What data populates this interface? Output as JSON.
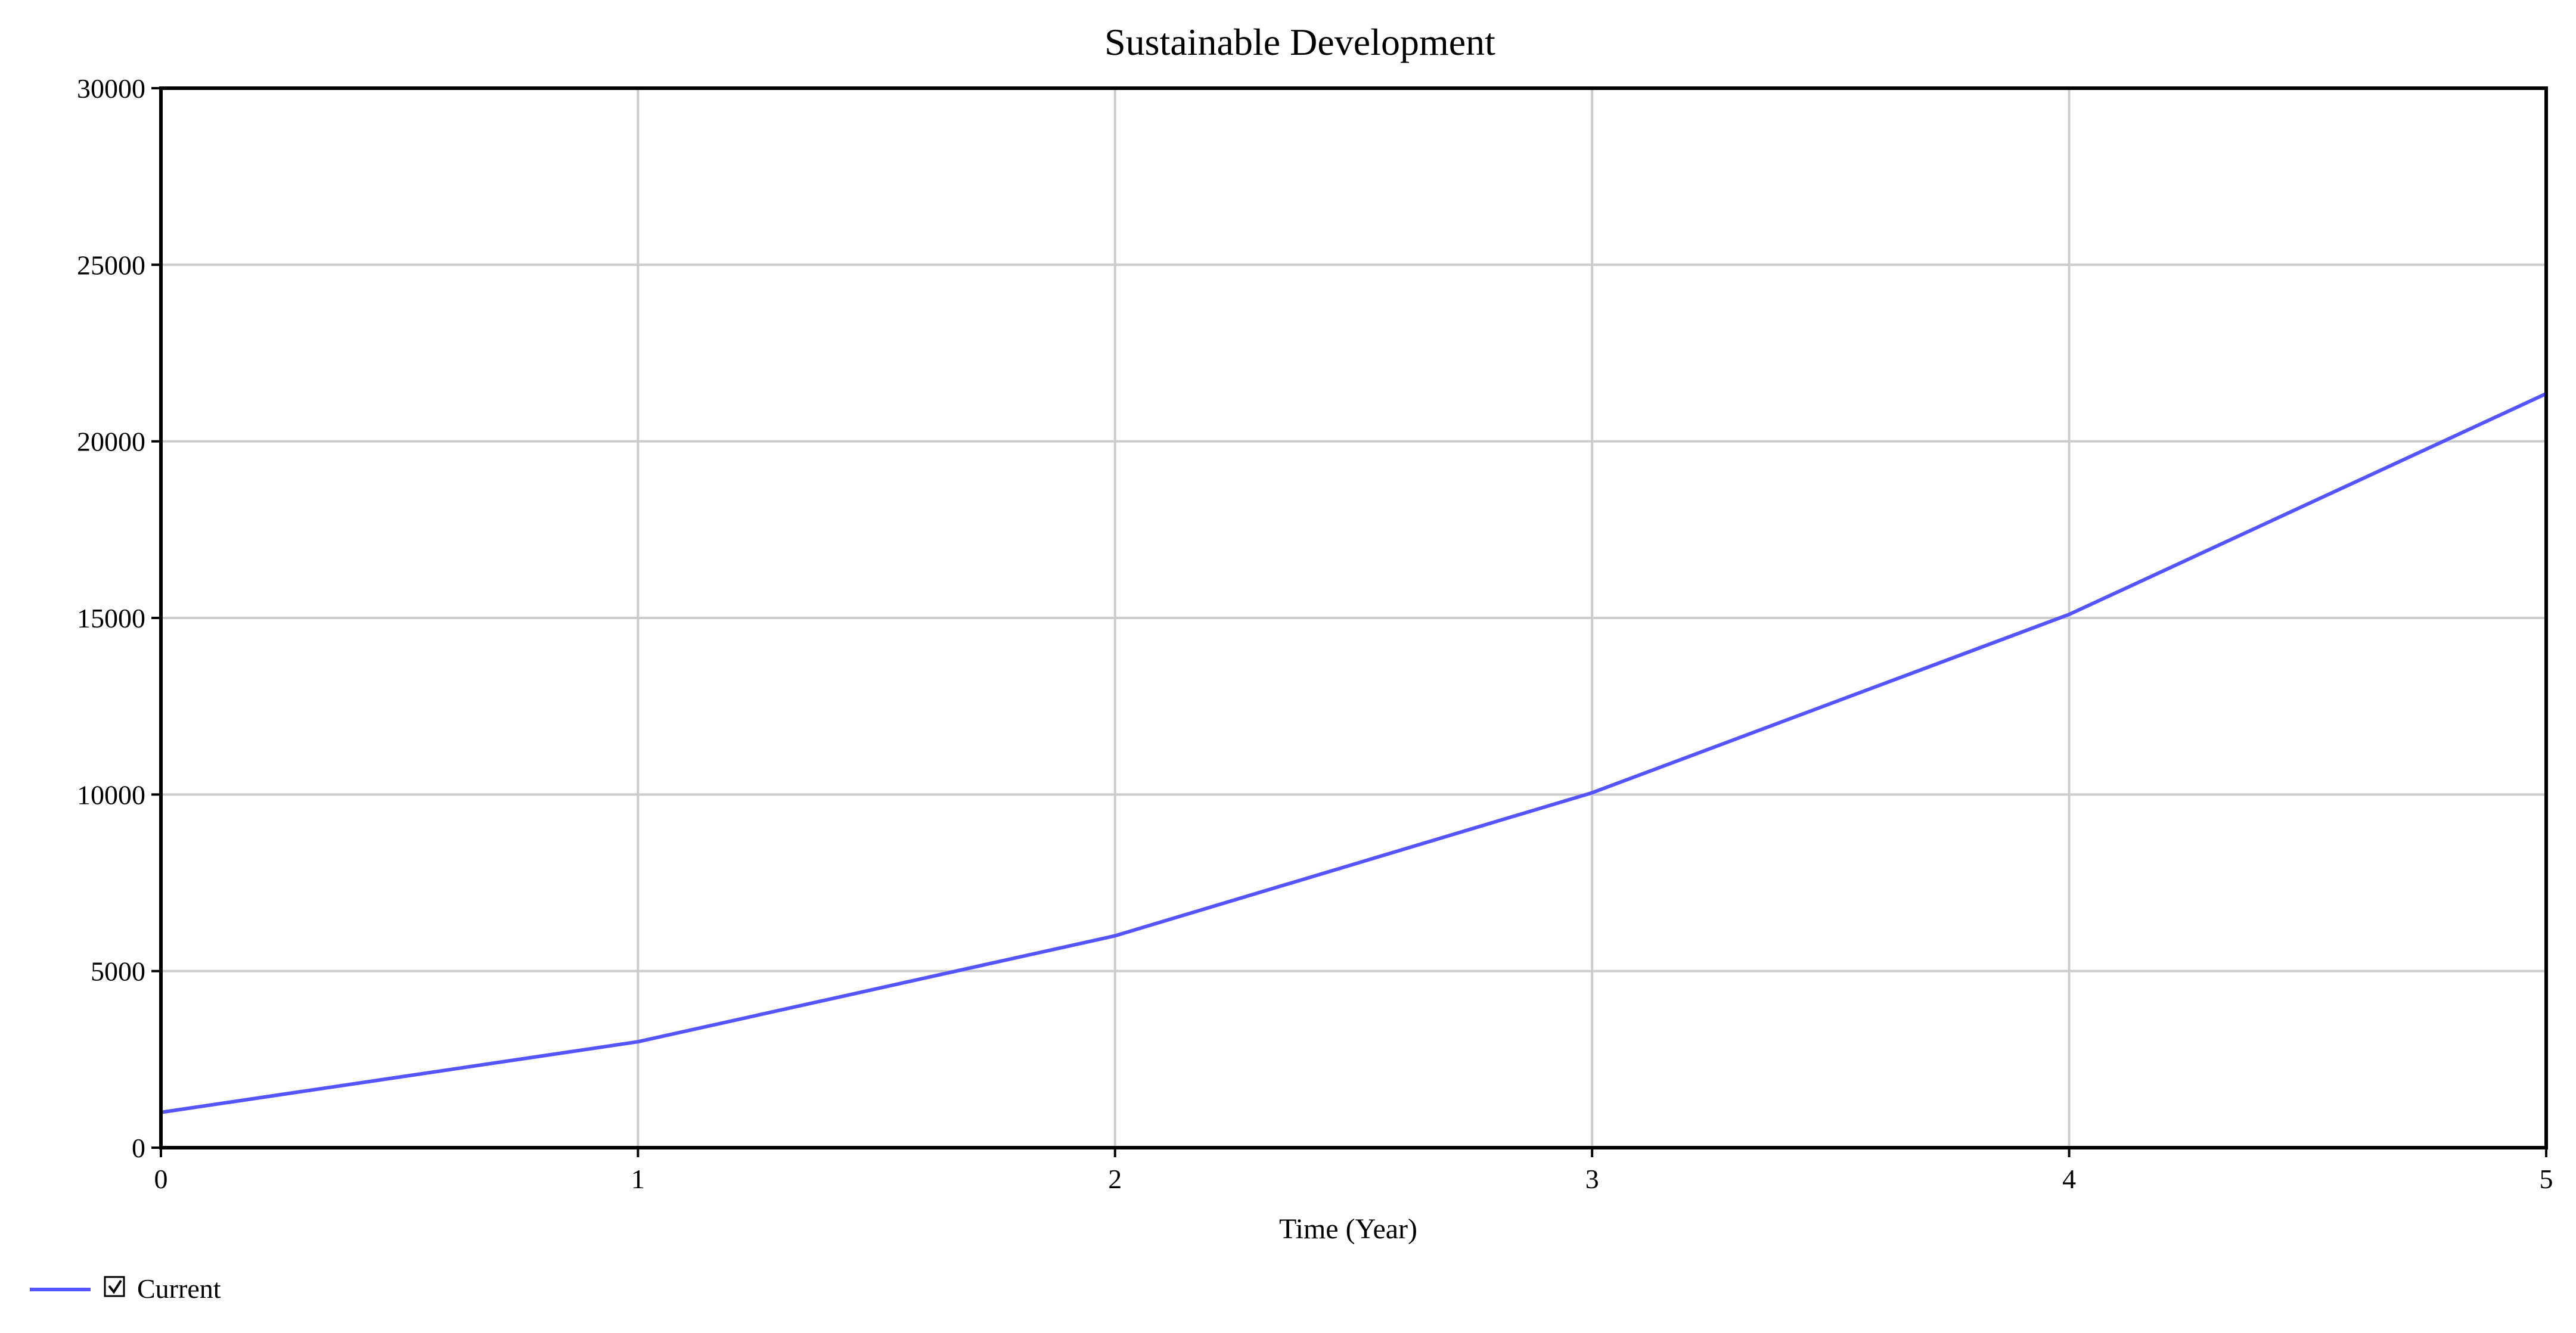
{
  "chart_data": {
    "type": "line",
    "title": "Sustainable Development",
    "xlabel": "Time (Year)",
    "ylabel": "",
    "x": [
      0,
      1,
      2,
      3,
      4,
      5
    ],
    "xlim": [
      0,
      5
    ],
    "ylim": [
      0,
      30000
    ],
    "x_ticks": [
      "0",
      "1",
      "2",
      "3",
      "4",
      "5"
    ],
    "y_ticks": [
      "0",
      "5000",
      "10000",
      "15000",
      "20000",
      "25000",
      "30000"
    ],
    "grid": true,
    "legend": "bottom-left",
    "series": [
      {
        "name": "Current",
        "color": "#5555ff",
        "checked": true,
        "values": [
          1000,
          3000,
          6000,
          10050,
          15100,
          21350
        ]
      }
    ]
  },
  "colors": {
    "gridline": "#cccccc",
    "frame": "#000000",
    "series": "#5555ff"
  }
}
